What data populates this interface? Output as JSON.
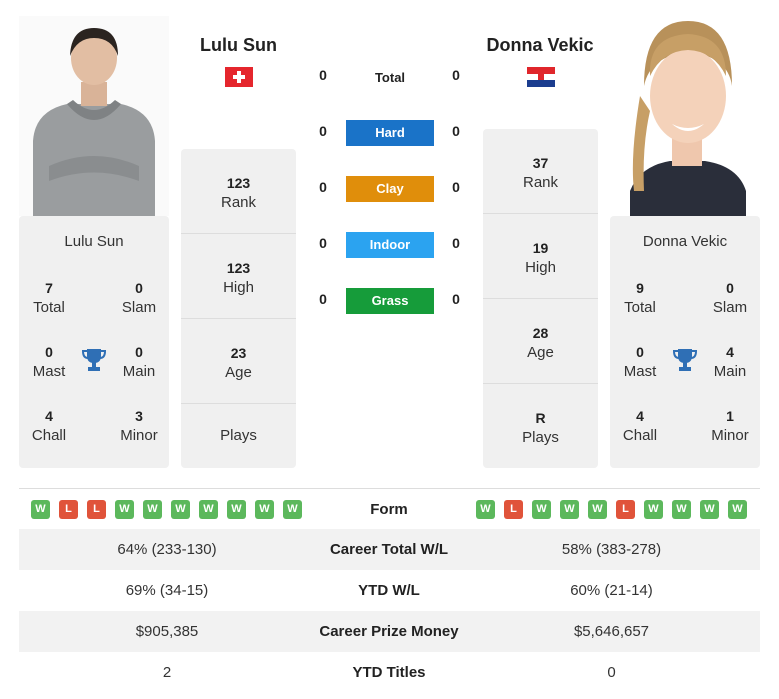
{
  "player1": {
    "name": "Lulu Sun",
    "card_name": "Lulu Sun",
    "rank": "123",
    "rank_label": "Rank",
    "high": "123",
    "high_label": "High",
    "age": "23",
    "age_label": "Age",
    "plays": "",
    "plays_label": "Plays",
    "total": "7",
    "total_label": "Total",
    "slam": "0",
    "slam_label": "Slam",
    "mast": "0",
    "mast_label": "Mast",
    "main": "0",
    "main_label": "Main",
    "chall": "4",
    "chall_label": "Chall",
    "minor": "3",
    "minor_label": "Minor",
    "flag": "switzerland-flag",
    "form": [
      "W",
      "L",
      "L",
      "W",
      "W",
      "W",
      "W",
      "W",
      "W",
      "W"
    ]
  },
  "player2": {
    "name": "Donna Vekic",
    "card_name": "Donna Vekic",
    "rank": "37",
    "rank_label": "Rank",
    "high": "19",
    "high_label": "High",
    "age": "28",
    "age_label": "Age",
    "plays": "R",
    "plays_label": "Plays",
    "total": "9",
    "total_label": "Total",
    "slam": "0",
    "slam_label": "Slam",
    "mast": "0",
    "mast_label": "Mast",
    "main": "4",
    "main_label": "Main",
    "chall": "4",
    "chall_label": "Chall",
    "minor": "1",
    "minor_label": "Minor",
    "flag": "croatia-flag",
    "form": [
      "W",
      "L",
      "W",
      "W",
      "W",
      "L",
      "W",
      "W",
      "W",
      "W"
    ]
  },
  "h2h": [
    {
      "label": "Total",
      "p1": "0",
      "p2": "0",
      "color": ""
    },
    {
      "label": "Hard",
      "p1": "0",
      "p2": "0",
      "color": "#1a73c8"
    },
    {
      "label": "Clay",
      "p1": "0",
      "p2": "0",
      "color": "#e08e0b"
    },
    {
      "label": "Indoor",
      "p1": "0",
      "p2": "0",
      "color": "#2ba3f0"
    },
    {
      "label": "Grass",
      "p1": "0",
      "p2": "0",
      "color": "#169c3a"
    }
  ],
  "comparison": {
    "form_label": "Form",
    "rows": [
      {
        "label": "Career Total W/L",
        "p1": "64% (233-130)",
        "p2": "58% (383-278)"
      },
      {
        "label": "YTD W/L",
        "p1": "69% (34-15)",
        "p2": "60% (21-14)"
      },
      {
        "label": "Career Prize Money",
        "p1": "$905,385",
        "p2": "$5,646,657"
      },
      {
        "label": "YTD Titles",
        "p1": "2",
        "p2": "0"
      }
    ]
  },
  "colors": {
    "win": "#5cb85c",
    "loss": "#e0533a",
    "trophy": "#2f6fb5",
    "panel": "#f0f0f0"
  }
}
